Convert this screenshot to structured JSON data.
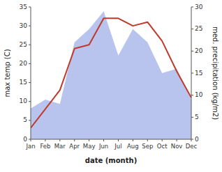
{
  "chart_data": {
    "type": "line",
    "categories": [
      "Jan",
      "Feb",
      "Mar",
      "Apr",
      "May",
      "Jun",
      "Jul",
      "Aug",
      "Sep",
      "Oct",
      "Nov",
      "Dec"
    ],
    "xlabel": "date (month)",
    "ylabel": "max temp (C)",
    "y2label": "med. precipitation (kg/m2)",
    "ylim": [
      0,
      35
    ],
    "yticks": [
      0,
      5,
      10,
      15,
      20,
      25,
      30,
      35
    ],
    "y2lim": [
      0,
      30
    ],
    "y2ticks": [
      0,
      5,
      10,
      15,
      20,
      25,
      30
    ],
    "series": [
      {
        "type": "area",
        "axis": "y2",
        "color": "#b8c4ee",
        "values": [
          7,
          9,
          8,
          22,
          25,
          29,
          19,
          25,
          22,
          15,
          16,
          9
        ]
      },
      {
        "type": "line",
        "color": "#c0392b",
        "values": [
          3,
          8,
          13,
          24,
          25,
          32,
          32,
          30,
          31,
          26,
          18,
          11
        ]
      }
    ]
  }
}
